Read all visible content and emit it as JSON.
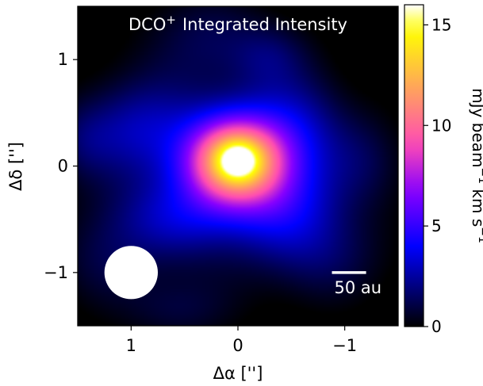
{
  "chart_data": {
    "type": "heatmap",
    "title": "DCO$^+$ Integrated Intensity",
    "title_parts": {
      "main": "DCO",
      "sup": "+",
      "rest": "Integrated Intensity"
    },
    "xlabel": "Δα ['']",
    "ylabel": "Δδ ['']",
    "xlim": [
      1.5,
      -1.5
    ],
    "ylim": [
      -1.5,
      1.5
    ],
    "xticks": [
      1,
      0,
      -1
    ],
    "xtick_labels": [
      "1",
      "0",
      "−1"
    ],
    "yticks": [
      1,
      0,
      -1
    ],
    "ytick_labels": [
      "1",
      "0",
      "−1"
    ],
    "colormap": "gnuplot2",
    "colorbar": {
      "label": "mJy beam$^{-1}$ km s$^{-1}$",
      "label_parts": [
        "mJy beam",
        "−1",
        " km s",
        "−1"
      ],
      "range": [
        0,
        16
      ],
      "ticks": [
        0,
        5,
        10,
        15
      ],
      "tick_labels": [
        "0",
        "5",
        "10",
        "15"
      ]
    },
    "peak": {
      "x": 0.0,
      "y": 0.05,
      "value": 16
    },
    "emission_components": [
      {
        "x": 0.0,
        "y": 0.05,
        "sx": 0.32,
        "sy": 0.28,
        "amp": 11.5
      },
      {
        "x": 0.0,
        "y": 0.05,
        "sx": 0.12,
        "sy": 0.11,
        "amp": 4.5
      },
      {
        "x": 0.1,
        "y": -0.05,
        "sx": 0.7,
        "sy": 0.6,
        "amp": 3.0
      },
      {
        "x": 0.95,
        "y": 0.35,
        "sx": 0.35,
        "sy": 0.3,
        "amp": 2.2
      },
      {
        "x": -0.55,
        "y": 0.35,
        "sx": 0.3,
        "sy": 0.35,
        "amp": 2.0
      },
      {
        "x": 0.55,
        "y": -0.5,
        "sx": 0.45,
        "sy": 0.25,
        "amp": 1.8
      },
      {
        "x": -0.5,
        "y": -0.4,
        "sx": 0.35,
        "sy": 0.3,
        "amp": 2.0
      },
      {
        "x": 0.3,
        "y": 1.2,
        "sx": 0.4,
        "sy": 0.3,
        "amp": 1.3
      },
      {
        "x": -0.3,
        "y": 1.05,
        "sx": 0.25,
        "sy": 0.2,
        "amp": 1.3
      },
      {
        "x": -0.85,
        "y": -0.85,
        "sx": 0.35,
        "sy": 0.3,
        "amp": 1.4
      },
      {
        "x": 1.25,
        "y": -0.9,
        "sx": 0.3,
        "sy": 0.3,
        "amp": 1.2
      },
      {
        "x": 0.6,
        "y": -1.35,
        "sx": 0.35,
        "sy": 0.2,
        "amp": 1.1
      },
      {
        "x": -1.2,
        "y": 0.05,
        "sx": 0.25,
        "sy": 0.3,
        "amp": 1.0
      },
      {
        "x": 1.45,
        "y": 0.25,
        "sx": 0.2,
        "sy": 0.25,
        "amp": 1.1
      }
    ],
    "beam": {
      "x": 1.0,
      "y": -1.0,
      "major": 0.5,
      "minor": 0.5,
      "pa": 0,
      "color": "#ffffff"
    },
    "scale_bar": {
      "label": "50 au",
      "x_start": -0.88,
      "x_end": -1.2,
      "y": -1.0,
      "color": "#ffffff"
    },
    "title_color": "#ffffff",
    "grid": false
  }
}
